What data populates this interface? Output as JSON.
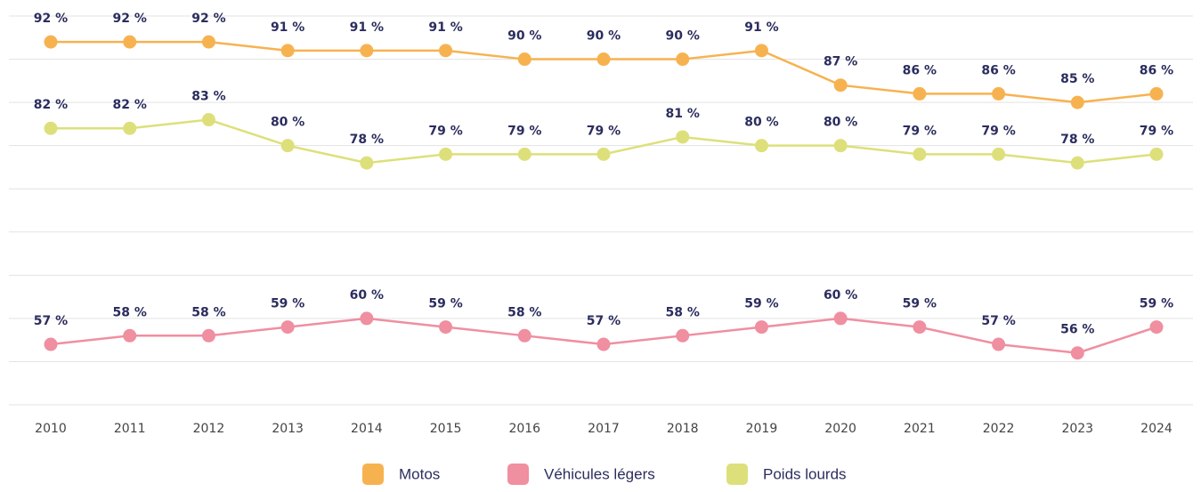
{
  "chart_data": {
    "type": "line",
    "categories": [
      "2010",
      "2011",
      "2012",
      "2013",
      "2014",
      "2015",
      "2016",
      "2017",
      "2018",
      "2019",
      "2020",
      "2021",
      "2022",
      "2023",
      "2024"
    ],
    "series": [
      {
        "name": "Motos",
        "color": "#f7b250",
        "values": [
          92,
          92,
          92,
          91,
          91,
          91,
          90,
          90,
          90,
          91,
          87,
          86,
          86,
          85,
          86
        ],
        "value_labels": [
          "92 %",
          "92 %",
          "92 %",
          "91 %",
          "91 %",
          "91 %",
          "90 %",
          "90 %",
          "90 %",
          "91 %",
          "87 %",
          "86 %",
          "86 %",
          "85 %",
          "86 %"
        ]
      },
      {
        "name": "Véhicules légers",
        "color": "#ef8fa0",
        "values": [
          57,
          58,
          58,
          59,
          60,
          59,
          58,
          57,
          58,
          59,
          60,
          59,
          57,
          56,
          59
        ],
        "value_labels": [
          "57 %",
          "58 %",
          "58 %",
          "59 %",
          "60 %",
          "59 %",
          "58 %",
          "57 %",
          "58 %",
          "59 %",
          "60 %",
          "59 %",
          "57 %",
          "56 %",
          "59 %"
        ]
      },
      {
        "name": "Poids lourds",
        "color": "#dde07a",
        "values": [
          82,
          82,
          83,
          80,
          78,
          79,
          79,
          79,
          81,
          80,
          80,
          79,
          79,
          78,
          79
        ],
        "value_labels": [
          "82 %",
          "82 %",
          "83 %",
          "80 %",
          "78 %",
          "79 %",
          "79 %",
          "79 %",
          "81 %",
          "80 %",
          "80 %",
          "79 %",
          "79 %",
          "78 %",
          "79 %"
        ]
      }
    ],
    "ylim": [
      50,
      95
    ],
    "yticks": [
      50,
      55,
      60,
      65,
      70,
      75,
      80,
      85,
      90,
      95
    ],
    "grid": true,
    "legend": "bottom"
  }
}
